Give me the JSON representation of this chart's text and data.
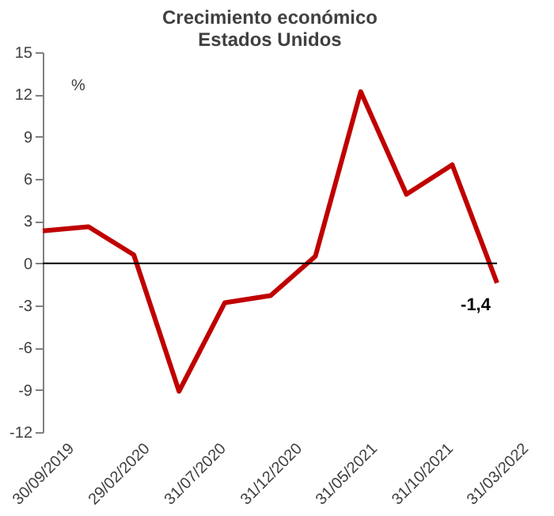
{
  "chart_data": {
    "type": "line",
    "title": [
      "Crecimiento económico",
      "Estados Unidos"
    ],
    "ylabel": "%",
    "x": [
      "2019-09-30",
      "2019-12-31",
      "2020-03-31",
      "2020-06-30",
      "2020-09-30",
      "2020-12-31",
      "2021-03-31",
      "2021-06-30",
      "2021-09-30",
      "2021-12-31",
      "2022-03-31"
    ],
    "series": [
      {
        "color": "#c00000",
        "values": [
          2.3,
          2.6,
          0.6,
          -9.1,
          -2.8,
          -2.3,
          0.5,
          12.2,
          4.9,
          7.0,
          -1.4
        ]
      }
    ],
    "xlim": [
      "2019-09-30",
      "2022-03-31"
    ],
    "xticks": [
      {
        "value": "2019-09-30",
        "label": "30/09/2019"
      },
      {
        "value": "2020-02-29",
        "label": "29/02/2020"
      },
      {
        "value": "2020-07-31",
        "label": "31/07/2020"
      },
      {
        "value": "2020-12-31",
        "label": "31/12/2020"
      },
      {
        "value": "2021-05-31",
        "label": "31/05/2021"
      },
      {
        "value": "2021-10-31",
        "label": "31/10/2021"
      },
      {
        "value": "2022-03-31",
        "label": "31/03/2022"
      }
    ],
    "ylim": [
      -12,
      15
    ],
    "yticks": [
      -12,
      -9,
      -6,
      -3,
      0,
      3,
      6,
      9,
      12,
      15
    ],
    "annotations": [
      {
        "text": "-1,4",
        "x": "2022-03-31",
        "y": -1.4
      }
    ],
    "ref_lines": [
      {
        "axis": "y",
        "value": 0,
        "color": "#000000"
      }
    ],
    "grid": false,
    "marker": "none",
    "line_style": "solid"
  }
}
